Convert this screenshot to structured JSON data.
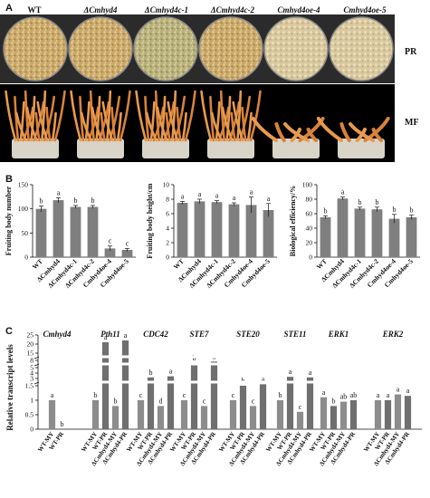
{
  "panelA": {
    "letter": "A",
    "strains": [
      "WT",
      "ΔCmhyd4",
      "ΔCmhyd4c-1",
      "ΔCmhyd4c-2",
      "Cmhyd4oe-4",
      "Cmhyd4oe-5"
    ],
    "row_labels": [
      "PR",
      "MF"
    ]
  },
  "panelB": {
    "letter": "B",
    "categories": [
      "WT",
      "ΔCmhyd4",
      "ΔCmhyd4c-1",
      "ΔCmhyd4c-2",
      "Cmhyd4oe-4",
      "Cmhyd4oe-5"
    ]
  },
  "panelC": {
    "letter": "C",
    "ylabel": "Relative transcript levels",
    "genes": [
      "Cmhyd4",
      "Pth11",
      "CDC42",
      "STE7",
      "STE20",
      "STE11",
      "ERK1",
      "ERK2"
    ]
  },
  "chart_data": [
    {
      "type": "bar",
      "ylabel": "Fruiting body number",
      "categories": [
        "WT",
        "ΔCmhyd4",
        "ΔCmhyd4c-1",
        "ΔCmhyd4c-2",
        "Cmhyd4oe-4",
        "Cmhyd4oe-5"
      ],
      "values": [
        100,
        118,
        104,
        104,
        18,
        15
      ],
      "errors": [
        6,
        5,
        3,
        3,
        5,
        3
      ],
      "letters": [
        "b",
        "a",
        "b",
        "b",
        "c",
        "c"
      ],
      "ylim": [
        0,
        150
      ],
      "yticks": [
        0,
        50,
        100,
        150
      ]
    },
    {
      "type": "bar",
      "ylabel": "Fruiting body height/cm",
      "categories": [
        "WT",
        "ΔCmhyd4",
        "ΔCmhyd4c-1",
        "ΔCmhyd4c-2",
        "Cmhyd4oe-4",
        "Cmhyd4oe-5"
      ],
      "values": [
        7.5,
        7.7,
        7.6,
        7.3,
        7.2,
        6.5
      ],
      "errors": [
        0.2,
        0.3,
        0.2,
        0.2,
        1.1,
        0.9
      ],
      "letters": [
        "a",
        "a",
        "a",
        "a",
        "a",
        "a"
      ],
      "ylim": [
        0,
        10
      ],
      "yticks": [
        0,
        2,
        4,
        6,
        8,
        10
      ]
    },
    {
      "type": "bar",
      "ylabel": "Biological efficiency/%",
      "categories": [
        "WT",
        "ΔCmhyd4",
        "ΔCmhyd4c-1",
        "ΔCmhyd4c-2",
        "Cmhyd4oe-4",
        "Cmhyd4oe-5"
      ],
      "values": [
        55,
        81,
        67,
        66,
        53,
        55
      ],
      "errors": [
        2,
        2,
        2,
        3,
        6,
        3
      ],
      "letters": [
        "b",
        "a",
        "b",
        "b",
        "b",
        "b"
      ],
      "ylim": [
        0,
        100
      ],
      "yticks": [
        0,
        20,
        40,
        60,
        80,
        100
      ]
    },
    {
      "type": "bar",
      "ylabel": "Relative transcript levels",
      "categories": [
        "WT-MY",
        "WT-PR",
        "ΔCmhyd4-MY",
        "ΔCmhyd4-PR"
      ],
      "yticks": [
        "0",
        "0.5",
        "1",
        "1.5",
        "3",
        "4",
        "5",
        "8",
        "15",
        "20",
        "25"
      ],
      "groups": [
        {
          "gene": "Cmhyd4",
          "values": [
            1.0,
            0.0
          ],
          "letters": [
            "a",
            "b"
          ],
          "labels": [
            "WT-MY",
            "WT-PR"
          ]
        },
        {
          "gene": "Pth11",
          "values": [
            1.0,
            21.0,
            0.8,
            22.0
          ],
          "letters": [
            "b",
            "a",
            "b",
            "a"
          ],
          "labels": [
            "WT-MY",
            "WT-PR",
            "ΔCmhyd4-MY",
            "ΔCmhyd4-PR"
          ]
        },
        {
          "gene": "CDC42",
          "values": [
            1.0,
            3.2,
            0.8,
            3.4
          ],
          "letters": [
            "c",
            "b",
            "d",
            "a"
          ],
          "labels": [
            "WT-MY",
            "WT-PR",
            "ΔCmhyd4-MY",
            "ΔCmhyd4-PR"
          ]
        },
        {
          "gene": "STE7",
          "values": [
            1.0,
            6.8,
            0.8,
            7.5
          ],
          "letters": [
            "c",
            "b",
            "c",
            "a"
          ],
          "labels": [
            "WT-MY",
            "WT-PR",
            "ΔCmhyd4-MY",
            "ΔCmhyd4-PR"
          ]
        },
        {
          "gene": "STE20",
          "values": [
            1.0,
            1.5,
            0.8,
            1.8
          ],
          "letters": [
            "c",
            "b",
            "c",
            "a"
          ],
          "labels": [
            "WT-MY",
            "WT-PR",
            "ΔCmhyd4-MY",
            "ΔCmhyd4-PR"
          ]
        },
        {
          "gene": "STE11",
          "values": [
            1.0,
            3.3,
            0.6,
            3.2
          ],
          "letters": [
            "b",
            "a",
            "c",
            "a"
          ],
          "labels": [
            "WT-MY",
            "WT-PR",
            "ΔCmhyd4-MY",
            "ΔCmhyd4-PR"
          ]
        },
        {
          "gene": "ERK1",
          "values": [
            1.1,
            0.8,
            0.95,
            1.0
          ],
          "letters": [
            "a",
            "b",
            "ab",
            "ab"
          ],
          "labels": [
            "WT-MY",
            "WT-PR",
            "ΔCmhyd4-MY",
            "ΔCmhyd4-PR"
          ]
        },
        {
          "gene": "ERK2",
          "values": [
            1.0,
            1.0,
            1.2,
            1.15
          ],
          "letters": [
            "a",
            "a",
            "a",
            "a"
          ],
          "labels": [
            "WT-MY",
            "WT-PR",
            "ΔCmhyd4-MY",
            "ΔCmhyd4-PR"
          ]
        }
      ]
    }
  ]
}
